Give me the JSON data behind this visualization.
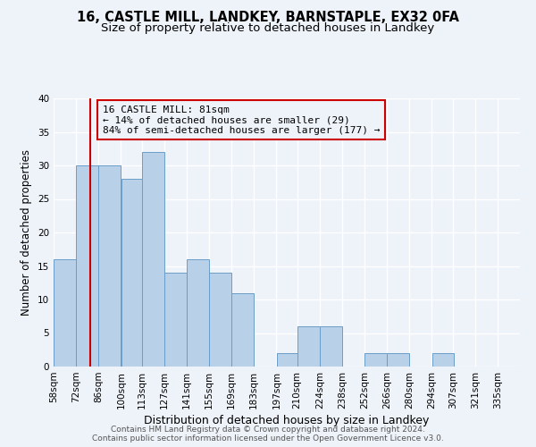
{
  "title1": "16, CASTLE MILL, LANDKEY, BARNSTAPLE, EX32 0FA",
  "title2": "Size of property relative to detached houses in Landkey",
  "xlabel": "Distribution of detached houses by size in Landkey",
  "ylabel": "Number of detached properties",
  "bar_lefts": [
    58,
    72,
    86,
    100,
    113,
    127,
    141,
    155,
    169,
    183,
    197,
    210,
    224,
    238,
    252,
    266,
    280,
    294,
    307,
    321
  ],
  "bar_heights": [
    16,
    30,
    30,
    28,
    32,
    14,
    16,
    14,
    11,
    0,
    2,
    6,
    6,
    0,
    2,
    2,
    0,
    2,
    0,
    0
  ],
  "bin_size": 14,
  "bar_color": "#b8d0e8",
  "bar_edgecolor": "#6b9dc8",
  "tick_labels": [
    "58sqm",
    "72sqm",
    "86sqm",
    "100sqm",
    "113sqm",
    "127sqm",
    "141sqm",
    "155sqm",
    "169sqm",
    "183sqm",
    "197sqm",
    "210sqm",
    "224sqm",
    "238sqm",
    "252sqm",
    "266sqm",
    "280sqm",
    "294sqm",
    "307sqm",
    "321sqm",
    "335sqm"
  ],
  "ylim": [
    0,
    40
  ],
  "yticks": [
    0,
    5,
    10,
    15,
    20,
    25,
    30,
    35,
    40
  ],
  "vline_x": 81,
  "vline_color": "#cc0000",
  "annotation_title": "16 CASTLE MILL: 81sqm",
  "annotation_line1": "← 14% of detached houses are smaller (29)",
  "annotation_line2": "84% of semi-detached houses are larger (177) →",
  "annotation_box_edgecolor": "#cc0000",
  "footer1": "Contains HM Land Registry data © Crown copyright and database right 2024.",
  "footer2": "Contains public sector information licensed under the Open Government Licence v3.0.",
  "bg_color": "#eef2f9",
  "grid_color": "#ffffff",
  "title1_fontsize": 10.5,
  "title2_fontsize": 9.5,
  "xlabel_fontsize": 9,
  "ylabel_fontsize": 8.5,
  "tick_fontsize": 7.5,
  "annotation_fontsize": 8,
  "footer_fontsize": 6.5
}
